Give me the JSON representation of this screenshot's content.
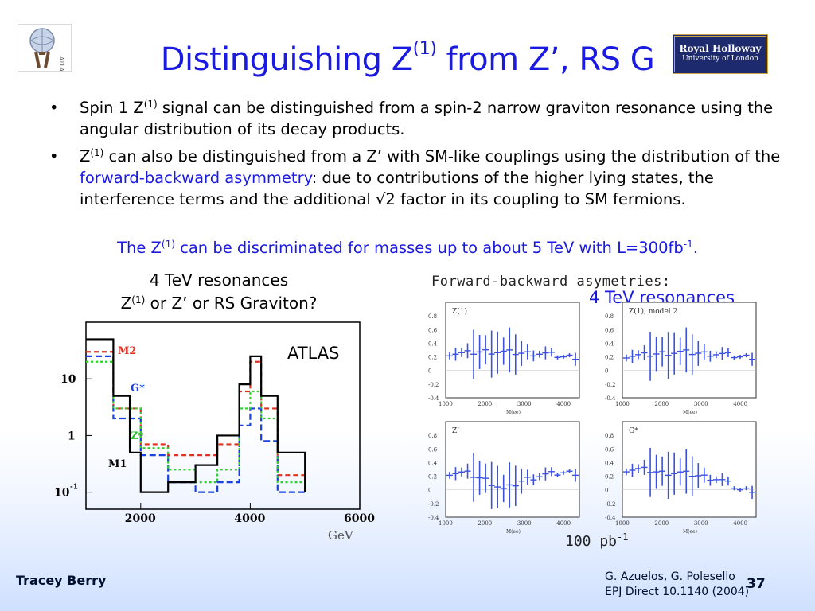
{
  "title": {
    "prefix": "Distinguishing Z",
    "sup": "(1)",
    "suffix": " from Z’, RS G"
  },
  "logo_rh": {
    "line1": "Royal Holloway",
    "line2": "University of London"
  },
  "bullet1": {
    "pre": "Spin 1 Z",
    "sup": "(1)",
    "post": " signal can be distinguished from a spin-2 narrow graviton resonance using the angular distribution of its decay products."
  },
  "bullet2": {
    "pre": "Z",
    "sup": "(1)",
    "mid": " can also be distinguished from a Z’ with SM-like couplings using the distribution of the ",
    "highlight": "forward-backward asymmetry",
    "post": ": due to contributions of the higher lying states, the interference terms and the additional √2 factor in its coupling to SM fermions."
  },
  "conclusion": {
    "pre": "The Z",
    "sup": "(1)",
    "mid": " can be discriminated for masses up to about 5 TeV with L=300fb",
    "sup2": "-1",
    "post": "."
  },
  "left_figure": {
    "caption_line1": "4 TeV resonances",
    "caption_pre": "Z",
    "caption_sup": "(1)",
    "caption_post": " or Z’ or RS Graviton?",
    "atlas": "ATLAS"
  },
  "right_figure": {
    "title": "Forward-backward asymetries:",
    "resonances": "4 TeV resonances",
    "lumi": "100 pb",
    "lumi_sup": "-1"
  },
  "chart_data": [
    {
      "type": "line",
      "title": "",
      "xlabel": "GeV",
      "ylabel": "",
      "xlim": [
        1000,
        6000
      ],
      "ylog": true,
      "x_ticks": [
        "2000",
        "4000",
        "6000"
      ],
      "y_ticks": [
        "10",
        "1",
        "10-1"
      ],
      "series": [
        {
          "name": "M2",
          "color": "#e03020",
          "x": [
            1000,
            1500,
            2000,
            2500,
            3000,
            3400,
            3800,
            4000,
            4200,
            4500,
            5000
          ],
          "y": [
            30,
            3,
            0.7,
            0.45,
            0.45,
            0.7,
            6,
            20,
            3,
            0.2,
            0.1
          ]
        },
        {
          "name": "G*",
          "color": "#1a40e0",
          "x": [
            1000,
            1500,
            2000,
            2500,
            3000,
            3400,
            3800,
            4000,
            4200,
            4500,
            5000
          ],
          "y": [
            25,
            2,
            0.45,
            0.15,
            0.1,
            0.15,
            1.5,
            3,
            0.8,
            0.1,
            0.1
          ]
        },
        {
          "name": "Z*",
          "color": "#30d030",
          "x": [
            1000,
            1500,
            2000,
            2500,
            3000,
            3400,
            3800,
            4000,
            4200,
            4500,
            5000
          ],
          "y": [
            20,
            3,
            0.6,
            0.25,
            0.15,
            0.25,
            3,
            6,
            2,
            0.15,
            0.1
          ]
        },
        {
          "name": "M1",
          "color": "#000000",
          "x": [
            1000,
            1500,
            1800,
            2000,
            2500,
            3000,
            3400,
            3800,
            4000,
            4200,
            4500,
            5000
          ],
          "y": [
            50,
            5,
            0.5,
            0.1,
            0.15,
            0.3,
            1,
            8,
            25,
            5,
            0.5,
            0.1
          ]
        }
      ]
    },
    {
      "type": "scatter",
      "title": "Forward-backward asymetries:",
      "panels": [
        {
          "name": "Z(1)",
          "ylim": [
            -0.4,
            1
          ],
          "x": [
            1500,
            2000,
            2500,
            3000,
            3500,
            4000
          ],
          "y": [
            0.25,
            0.28,
            0.27,
            0.25,
            0.25,
            0.2
          ]
        },
        {
          "name": "Z(1), model 2",
          "ylim": [
            -0.4,
            1
          ],
          "x": [
            1500,
            2000,
            2500,
            3000,
            3500,
            4000
          ],
          "y": [
            0.22,
            0.25,
            0.27,
            0.25,
            0.24,
            0.2
          ]
        },
        {
          "name": "Z’",
          "ylim": [
            -0.4,
            1
          ],
          "x": [
            1500,
            2000,
            2500,
            3000,
            3500,
            4000
          ],
          "y": [
            0.25,
            0.15,
            0.0,
            0.15,
            0.22,
            0.25
          ]
        },
        {
          "name": "G*",
          "ylim": [
            -0.4,
            1
          ],
          "x": [
            1500,
            2000,
            2500,
            3000,
            3500,
            4000
          ],
          "y": [
            0.3,
            0.25,
            0.25,
            0.2,
            0.15,
            0.0
          ]
        }
      ],
      "xlabel": "M(ee)",
      "x_ticks": [
        "1000",
        "2000",
        "3000",
        "4000"
      ],
      "y_ticks": [
        "1",
        "0.8",
        "0.6",
        "0.4",
        "0.2",
        "0",
        "-0.2",
        "-0.4"
      ]
    }
  ],
  "footer": {
    "author": "Tracey Berry",
    "ref_line1": "G. Azuelos, G. Polesello",
    "ref_line2": "EPJ Direct 10.1140 (2004)",
    "slide_number": "37"
  }
}
